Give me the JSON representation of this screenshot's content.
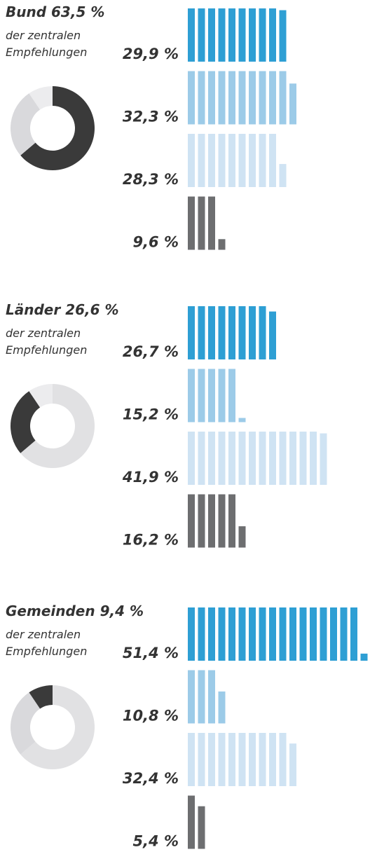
{
  "chart_data": [
    {
      "type": "pictogram",
      "title": "Bund",
      "share": 63.5,
      "share_label": "63,5 %",
      "subtitle": [
        "der zentralen",
        "Empfehlungen"
      ],
      "values": [
        29.9,
        32.3,
        28.3,
        9.6
      ],
      "value_labels": [
        "29,9 %",
        "32,3 %",
        "28,3 %",
        "9,6 %"
      ],
      "colors": [
        "#2e9fd4",
        "#9ccbe8",
        "#cfe3f3",
        "#6d6e70"
      ]
    },
    {
      "type": "pictogram",
      "title": "Länder",
      "share": 26.6,
      "share_label": "26,6 %",
      "subtitle": [
        "der zentralen",
        "Empfehlungen"
      ],
      "values": [
        26.7,
        15.2,
        41.9,
        16.2
      ],
      "value_labels": [
        "26,7 %",
        "15,2 %",
        "41,9 %",
        "16,2 %"
      ],
      "colors": [
        "#2e9fd4",
        "#9ccbe8",
        "#cfe3f3",
        "#6d6e70"
      ]
    },
    {
      "type": "pictogram",
      "title": "Gemeinden",
      "share": 9.4,
      "share_label": "9,4 %",
      "subtitle": [
        "der zentralen",
        "Empfehlungen"
      ],
      "values": [
        51.4,
        10.8,
        32.4,
        5.4
      ],
      "value_labels": [
        "51,4 %",
        "10,8 %",
        "32,4 %",
        "5,4 %"
      ],
      "colors": [
        "#2e9fd4",
        "#9ccbe8",
        "#cfe3f3",
        "#6d6e70"
      ]
    }
  ]
}
